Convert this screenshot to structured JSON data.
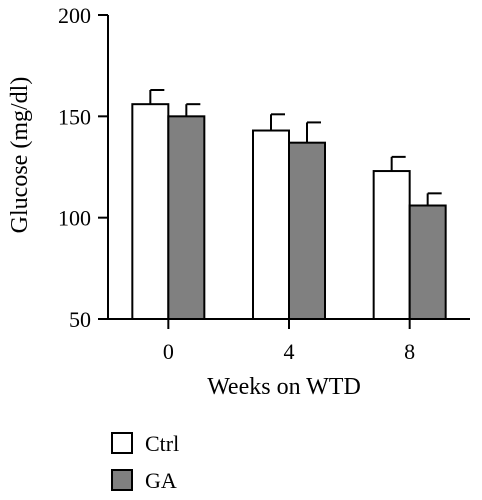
{
  "chart_data": {
    "type": "bar",
    "title": "",
    "xlabel": "Weeks on WTD",
    "ylabel": "Glucose (mg/dl)",
    "categories": [
      "0",
      "4",
      "8"
    ],
    "ylim": [
      50,
      200
    ],
    "yticks": [
      "50",
      "100",
      "150",
      "200"
    ],
    "series": [
      {
        "name": "Ctrl",
        "values": [
          156,
          143,
          123
        ],
        "errors": [
          7,
          8,
          7
        ],
        "color": "#ffffff"
      },
      {
        "name": "GA",
        "values": [
          150,
          137,
          106
        ],
        "errors": [
          6,
          10,
          6
        ],
        "color": "#808080"
      }
    ],
    "grid": false,
    "legend_position": "bottom-left",
    "error_bars": "upper"
  }
}
